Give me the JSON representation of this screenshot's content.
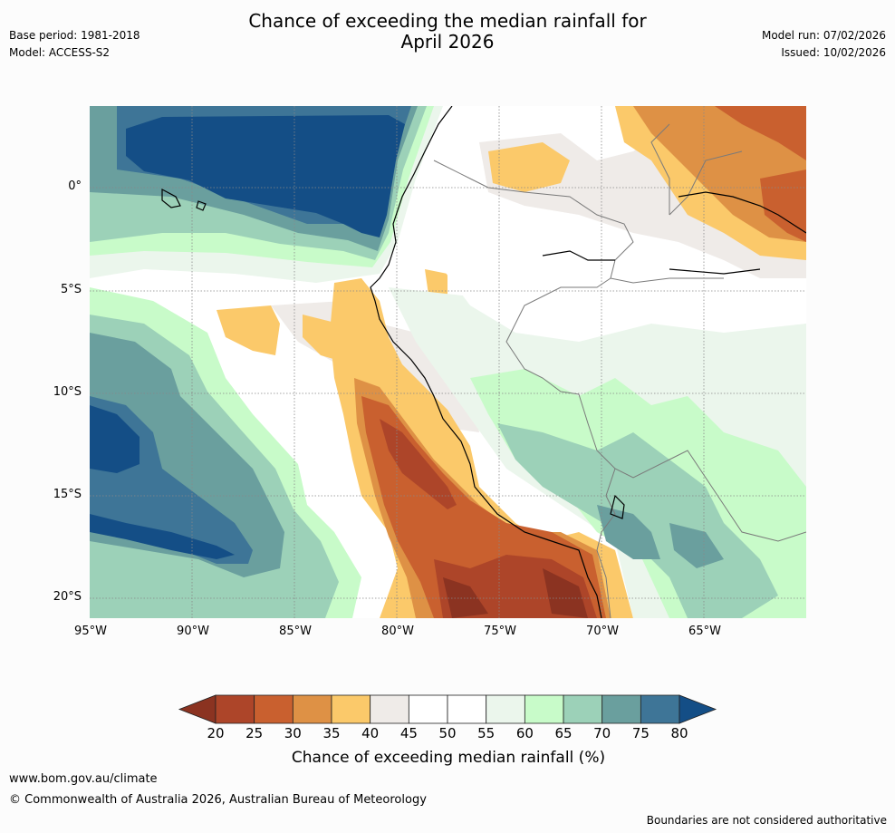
{
  "header": {
    "title_line1": "Chance of exceeding the median rainfall for",
    "title_line2": "April 2026",
    "base_period": "Base period: 1981-2018",
    "model": "Model: ACCESS-S2",
    "model_run": "Model run: 07/02/2026",
    "issued": "Issued: 10/02/2026"
  },
  "map": {
    "lat_labels": [
      "0°",
      "5°S",
      "10°S",
      "15°S",
      "20°S"
    ],
    "lon_labels": [
      "95°W",
      "90°W",
      "85°W",
      "80°W",
      "75°W",
      "70°W",
      "65°W"
    ]
  },
  "colorbar": {
    "ticks": [
      "20",
      "25",
      "30",
      "35",
      "40",
      "45",
      "50",
      "55",
      "60",
      "65",
      "70",
      "75",
      "80"
    ],
    "colors": [
      "#8b3321",
      "#ad4529",
      "#c9602f",
      "#de9145",
      "#fbc96a",
      "#efebe8",
      "#ffffff",
      "#ffffff",
      "#ebf6ec",
      "#c8fbc9",
      "#9cd1b8",
      "#6a9f9e",
      "#3e7597",
      "#144e86"
    ],
    "label": "Chance of exceeding median rainfall (%)"
  },
  "footer": {
    "url": "www.bom.gov.au/climate",
    "copyright": "© Commonwealth of Australia 2026, Australian Bureau of Meteorology",
    "disclaimer": "Boundaries are not considered authoritative"
  }
}
